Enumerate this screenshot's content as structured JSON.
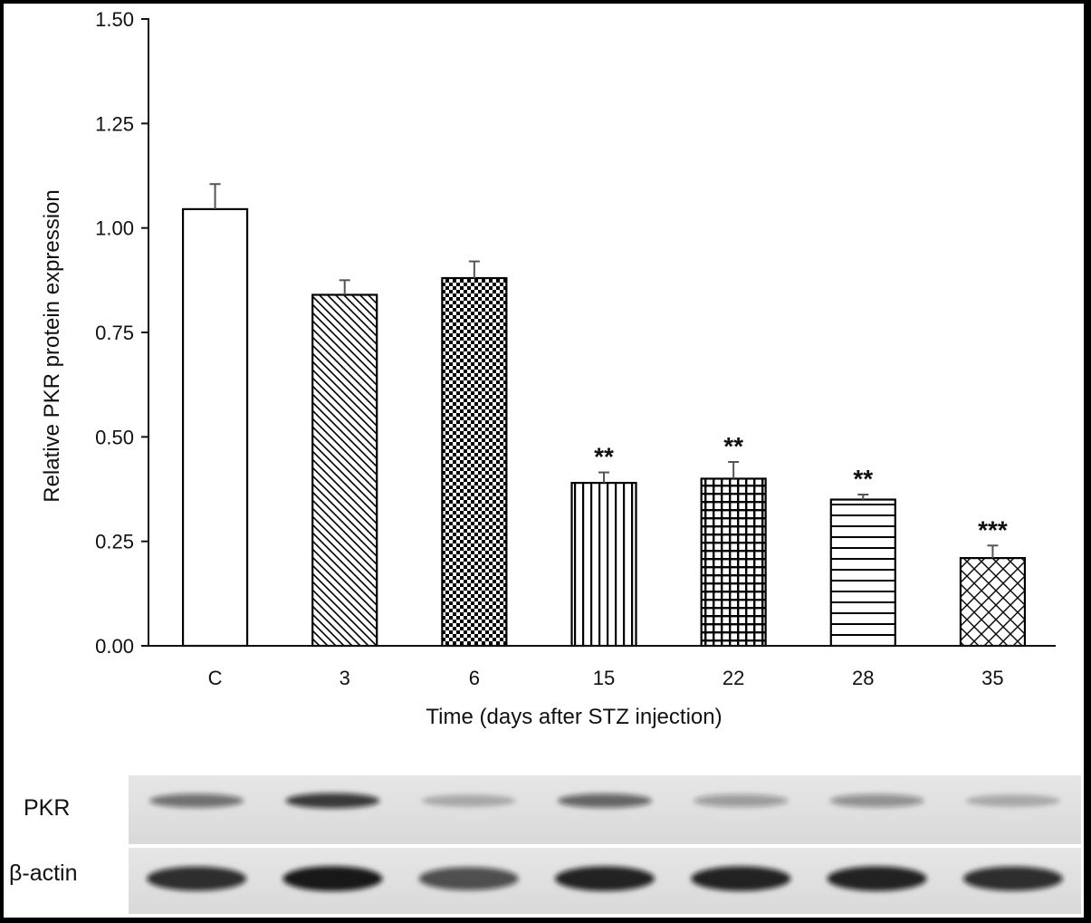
{
  "chart_data": {
    "type": "bar",
    "ylabel": "Relative PKR protein expression",
    "xlabel": "Time (days after STZ injection)",
    "ylim": [
      0,
      1.5
    ],
    "yticks": [
      "0.00",
      "0.25",
      "0.50",
      "0.75",
      "1.00",
      "1.25",
      "1.50"
    ],
    "categories": [
      "C",
      "3",
      "6",
      "15",
      "22",
      "28",
      "35"
    ],
    "values": [
      1.045,
      0.84,
      0.88,
      0.39,
      0.4,
      0.35,
      0.21
    ],
    "errors": [
      0.06,
      0.035,
      0.04,
      0.025,
      0.04,
      0.012,
      0.03
    ],
    "patterns": [
      "none",
      "diagonal",
      "checker",
      "vertical",
      "grid",
      "horizontal",
      "crosshatch"
    ],
    "significance": [
      "",
      "",
      "",
      "**",
      "**",
      "**",
      "***"
    ],
    "grid": false,
    "legend": false
  },
  "blot": {
    "rows": [
      "PKR",
      "β-actin"
    ]
  },
  "colors": {
    "bar_fill": "#ffffff",
    "bar_stroke": "#000000",
    "axis": "#111111"
  }
}
